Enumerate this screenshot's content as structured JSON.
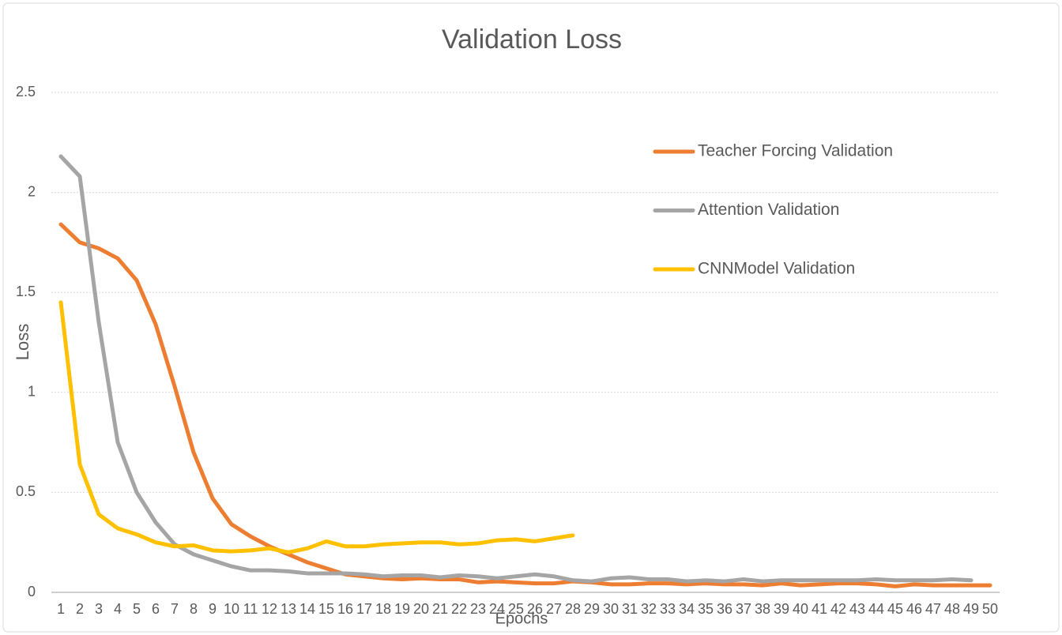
{
  "chart_data": {
    "type": "line",
    "title": "Validation Loss",
    "x_label": "Epochs",
    "y_label": "Loss",
    "categories": [
      "1",
      "2",
      "3",
      "4",
      "5",
      "6",
      "7",
      "8",
      "9",
      "10",
      "11",
      "12",
      "13",
      "14",
      "15",
      "16",
      "17",
      "18",
      "19",
      "20",
      "21",
      "22",
      "23",
      "24",
      "25",
      "26",
      "27",
      "28",
      "29",
      "30",
      "31",
      "32",
      "33",
      "34",
      "35",
      "36",
      "37",
      "38",
      "39",
      "40",
      "41",
      "42",
      "43",
      "44",
      "45",
      "46",
      "47",
      "48",
      "49",
      "50"
    ],
    "series": [
      {
        "name": "Teacher Forcing Validation",
        "color": "#ed7d31",
        "values": [
          1.84,
          1.75,
          1.72,
          1.67,
          1.56,
          1.34,
          1.03,
          0.7,
          0.47,
          0.34,
          0.28,
          0.23,
          0.19,
          0.15,
          0.12,
          0.09,
          0.08,
          0.07,
          0.065,
          0.07,
          0.065,
          0.065,
          0.05,
          0.055,
          0.05,
          0.045,
          0.045,
          0.055,
          0.05,
          0.04,
          0.04,
          0.045,
          0.045,
          0.04,
          0.045,
          0.04,
          0.04,
          0.035,
          0.045,
          0.035,
          0.04,
          0.045,
          0.045,
          0.04,
          0.03,
          0.04,
          0.035,
          0.035,
          0.035,
          0.035
        ]
      },
      {
        "name": "Attention Validation",
        "color": "#a5a5a5",
        "values": [
          2.18,
          2.08,
          1.35,
          0.75,
          0.5,
          0.35,
          0.24,
          0.19,
          0.16,
          0.13,
          0.11,
          0.11,
          0.105,
          0.095,
          0.095,
          0.095,
          0.09,
          0.08,
          0.085,
          0.085,
          0.075,
          0.085,
          0.08,
          0.07,
          0.08,
          0.09,
          0.08,
          0.06,
          0.055,
          0.07,
          0.075,
          0.065,
          0.065,
          0.055,
          0.06,
          0.055,
          0.065,
          0.055,
          0.06,
          0.06,
          0.06,
          0.06,
          0.06,
          0.065,
          0.06,
          0.06,
          0.06,
          0.065,
          0.06,
          null
        ]
      },
      {
        "name": "CNNModel Validation",
        "color": "#ffc000",
        "values": [
          1.45,
          0.64,
          0.39,
          0.32,
          0.29,
          0.25,
          0.23,
          0.235,
          0.21,
          0.205,
          0.21,
          0.22,
          0.2,
          0.22,
          0.255,
          0.23,
          0.23,
          0.24,
          0.245,
          0.25,
          0.25,
          0.24,
          0.245,
          0.26,
          0.265,
          0.255,
          0.27,
          0.285,
          null,
          null,
          null,
          null,
          null,
          null,
          null,
          null,
          null,
          null,
          null,
          null,
          null,
          null,
          null,
          null,
          null,
          null,
          null,
          null,
          null,
          null
        ]
      }
    ],
    "ylim": [
      0,
      2.5
    ],
    "yticks": [
      0,
      0.5,
      1,
      1.5,
      2,
      2.5
    ],
    "grid": true,
    "legend": "right"
  }
}
